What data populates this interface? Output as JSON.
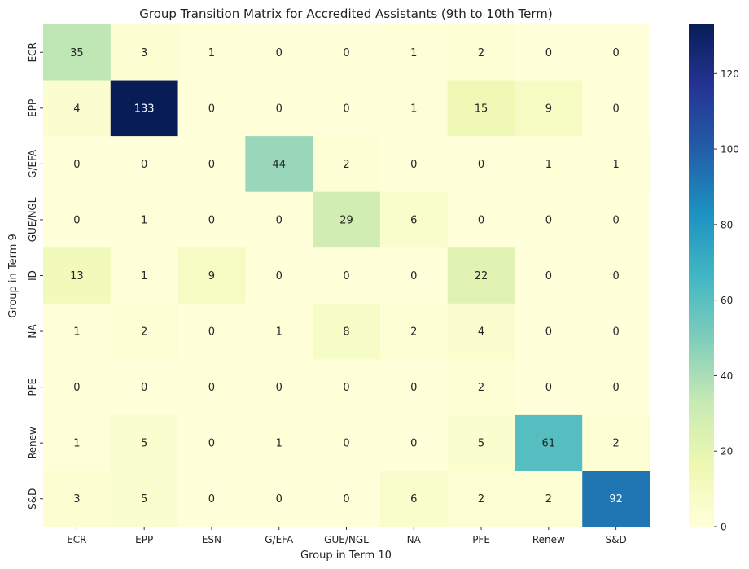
{
  "chart_data": {
    "type": "heatmap",
    "title": "Group Transition Matrix for Accredited Assistants (9th to 10th Term)",
    "xlabel": "Group in Term 10",
    "ylabel": "Group in Term 9",
    "x_categories": [
      "ECR",
      "EPP",
      "ESN",
      "G/EFA",
      "GUE/NGL",
      "NA",
      "PFE",
      "Renew",
      "S&D"
    ],
    "y_categories": [
      "ECR",
      "EPP",
      "G/EFA",
      "GUE/NGL",
      "ID",
      "NA",
      "PFE",
      "Renew",
      "S&D"
    ],
    "values": [
      [
        35,
        3,
        1,
        0,
        0,
        1,
        2,
        0,
        0
      ],
      [
        4,
        133,
        0,
        0,
        0,
        1,
        15,
        9,
        0
      ],
      [
        0,
        0,
        0,
        44,
        2,
        0,
        0,
        1,
        1
      ],
      [
        0,
        1,
        0,
        0,
        29,
        6,
        0,
        0,
        0
      ],
      [
        13,
        1,
        9,
        0,
        0,
        0,
        22,
        0,
        0
      ],
      [
        1,
        2,
        0,
        1,
        8,
        2,
        4,
        0,
        0
      ],
      [
        0,
        0,
        0,
        0,
        0,
        0,
        2,
        0,
        0
      ],
      [
        1,
        5,
        0,
        1,
        0,
        0,
        5,
        61,
        2
      ],
      [
        3,
        5,
        0,
        0,
        0,
        6,
        2,
        2,
        92
      ]
    ],
    "colormap": "YlGnBu",
    "value_range": [
      0,
      133
    ],
    "colorbar": {
      "ticks": [
        0,
        20,
        40,
        60,
        80,
        100,
        120
      ]
    },
    "annotations": true
  }
}
